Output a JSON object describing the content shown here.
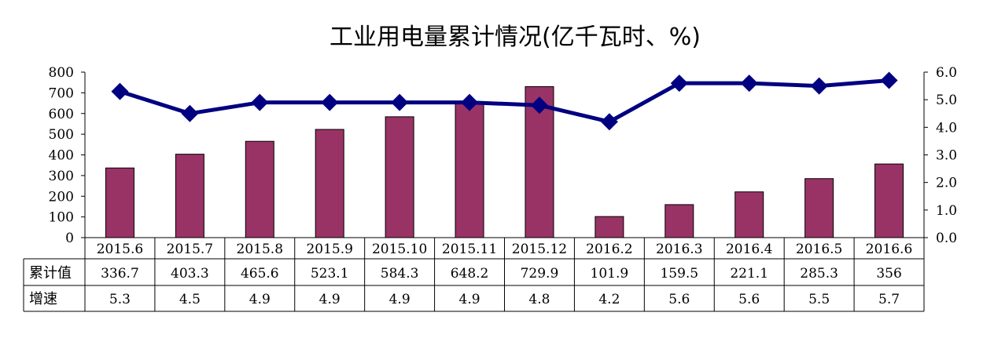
{
  "chart_data": {
    "type": "bar",
    "title": "工业用电量累计情况(亿千瓦时、%)",
    "categories": [
      "2015.6",
      "2015.7",
      "2015.8",
      "2015.9",
      "2015.10",
      "2015.11",
      "2015.12",
      "2016.2",
      "2016.3",
      "2016.4",
      "2016.5",
      "2016.6"
    ],
    "series": [
      {
        "name": "累计值",
        "type": "bar",
        "axis": "left",
        "values": [
          336.7,
          403.3,
          465.6,
          523.1,
          584.3,
          648.2,
          729.9,
          101.9,
          159.5,
          221.1,
          285.3,
          356
        ],
        "labels": [
          "336.7",
          "403.3",
          "465.6",
          "523.1",
          "584.3",
          "648.2",
          "729.9",
          "101.9",
          "159.5",
          "221.1",
          "285.3",
          "356"
        ]
      },
      {
        "name": "增速",
        "type": "line",
        "axis": "right",
        "values": [
          5.3,
          4.5,
          4.9,
          4.9,
          4.9,
          4.9,
          4.8,
          4.2,
          5.6,
          5.6,
          5.5,
          5.7
        ],
        "labels": [
          "5.3",
          "4.5",
          "4.9",
          "4.9",
          "4.9",
          "4.9",
          "4.8",
          "4.2",
          "5.6",
          "5.6",
          "5.5",
          "5.7"
        ]
      }
    ],
    "y_left": {
      "min": 0,
      "max": 800,
      "ticks": [
        "0",
        "100",
        "200",
        "300",
        "400",
        "500",
        "600",
        "700",
        "800"
      ]
    },
    "y_right": {
      "min": 0,
      "max": 6,
      "ticks": [
        "0.0",
        "1.0",
        "2.0",
        "3.0",
        "4.0",
        "5.0",
        "6.0"
      ]
    },
    "data_table": true,
    "grid": false,
    "colors": {
      "bar": "#993366",
      "bar_stroke": "#000000",
      "line": "#000080"
    }
  }
}
